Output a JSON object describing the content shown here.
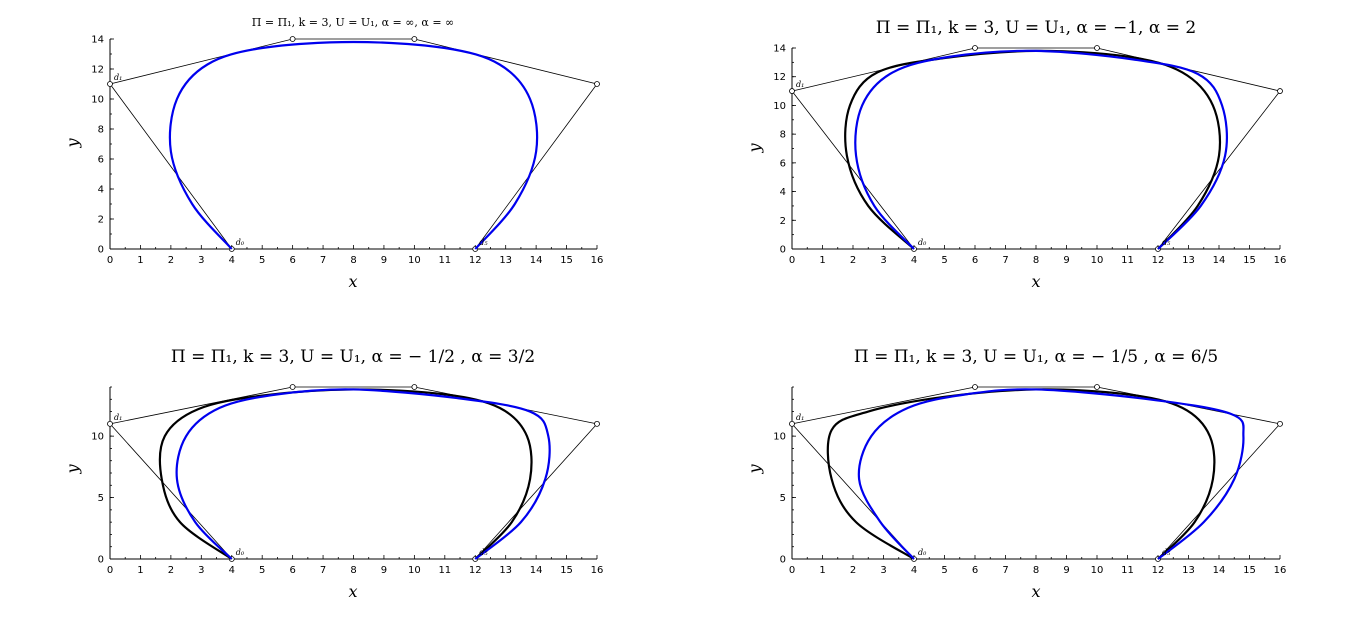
{
  "chart_data": [
    {
      "type": "line",
      "title": "Π = Π₁, k = 3, U = U₁, α = ∞, α = ∞",
      "xlabel": "x",
      "ylabel": "y",
      "xlim": [
        0,
        16
      ],
      "ylim": [
        0,
        14
      ],
      "xticks": [
        "0",
        "1",
        "2",
        "3",
        "4",
        "5",
        "6",
        "7",
        "8",
        "9",
        "10",
        "11",
        "12",
        "13",
        "14",
        "15",
        "16"
      ],
      "yticks": [
        "0",
        "2",
        "4",
        "6",
        "8",
        "10",
        "12",
        "14"
      ],
      "grid": false,
      "control_polygon": {
        "x": [
          4,
          0,
          6,
          10,
          16,
          12
        ],
        "y": [
          0,
          11,
          14,
          14,
          11,
          0
        ]
      },
      "point_labels": [
        {
          "text": "d₁",
          "x": 0,
          "y": 11
        },
        {
          "text": "d₀",
          "x": 4,
          "y": 0
        },
        {
          "text": "d₅",
          "x": 12,
          "y": 0
        }
      ],
      "series": [
        {
          "color": "#0000ee",
          "x": [
            4,
            2.7,
            2.0,
            2.2,
            3.2,
            5.0,
            8.0,
            11.0,
            12.8,
            13.8,
            14.0,
            13.3,
            12
          ],
          "y": [
            0,
            3.0,
            6.5,
            10.0,
            12.3,
            13.4,
            13.8,
            13.4,
            12.3,
            10.0,
            6.5,
            3.0,
            0
          ]
        }
      ]
    },
    {
      "type": "line",
      "title": "Π = Π₁, k = 3, U = U₁, α = −1, α = 2",
      "xlabel": "x",
      "ylabel": "y",
      "xlim": [
        0,
        16
      ],
      "ylim": [
        0,
        14
      ],
      "xticks": [
        "0",
        "1",
        "2",
        "3",
        "4",
        "5",
        "6",
        "7",
        "8",
        "9",
        "10",
        "11",
        "12",
        "13",
        "14",
        "15",
        "16"
      ],
      "yticks": [
        "0",
        "2",
        "4",
        "6",
        "8",
        "10",
        "12",
        "14"
      ],
      "grid": false,
      "control_polygon": {
        "x": [
          4,
          0,
          6,
          10,
          16,
          12
        ],
        "y": [
          0,
          11,
          14,
          14,
          11,
          0
        ]
      },
      "point_labels": [
        {
          "text": "d₁",
          "x": 0,
          "y": 11
        },
        {
          "text": "d₀",
          "x": 4,
          "y": 0
        },
        {
          "text": "d₅",
          "x": 12,
          "y": 0
        }
      ],
      "series": [
        {
          "color": "#000000",
          "x": [
            4,
            2.5,
            1.8,
            1.9,
            2.8,
            5.0,
            8.0,
            11.0,
            12.8,
            13.8,
            14.0,
            13.3,
            12
          ],
          "y": [
            0,
            3.0,
            6.5,
            10.0,
            12.3,
            13.3,
            13.8,
            13.4,
            12.3,
            10.0,
            6.5,
            3.0,
            0
          ]
        },
        {
          "color": "#0000ee",
          "x": [
            4,
            2.7,
            2.1,
            2.3,
            3.3,
            5.2,
            8.0,
            11.2,
            13.3,
            14.1,
            14.2,
            13.4,
            12
          ],
          "y": [
            0,
            3.0,
            6.5,
            10.0,
            12.3,
            13.4,
            13.8,
            13.2,
            12.2,
            10.0,
            6.5,
            3.0,
            0
          ]
        }
      ]
    },
    {
      "type": "line",
      "title": "Π = Π₁, k = 3, U = U₁, α = − 1/2 , α = 3/2",
      "xlabel": "x",
      "ylabel": "y",
      "xlim": [
        0,
        16
      ],
      "ylim": [
        0,
        14
      ],
      "xticks": [
        "0",
        "1",
        "2",
        "3",
        "4",
        "5",
        "6",
        "7",
        "8",
        "9",
        "10",
        "11",
        "12",
        "13",
        "14",
        "15",
        "16"
      ],
      "yticks": [
        "0",
        "5",
        "10"
      ],
      "grid": false,
      "control_polygon": {
        "x": [
          4,
          0,
          6,
          10,
          16,
          12
        ],
        "y": [
          0,
          11,
          14,
          14,
          11,
          0
        ]
      },
      "point_labels": [
        {
          "text": "d₁",
          "x": 0,
          "y": 11
        },
        {
          "text": "d₀",
          "x": 4,
          "y": 0
        },
        {
          "text": "d₅",
          "x": 12,
          "y": 0
        }
      ],
      "series": [
        {
          "color": "#000000",
          "x": [
            4,
            2.3,
            1.7,
            1.8,
            2.9,
            5.0,
            8.0,
            11.0,
            12.8,
            13.7,
            13.8,
            13.2,
            12
          ],
          "y": [
            0,
            3.0,
            6.5,
            10.0,
            12.2,
            13.3,
            13.8,
            13.4,
            12.3,
            10.0,
            6.5,
            3.0,
            0
          ]
        },
        {
          "color": "#0000ee",
          "x": [
            4,
            2.8,
            2.2,
            2.5,
            3.6,
            5.5,
            8.0,
            11.4,
            13.8,
            14.4,
            14.3,
            13.5,
            12
          ],
          "y": [
            0,
            3.0,
            6.5,
            10.0,
            12.3,
            13.4,
            13.8,
            13.1,
            12.0,
            10.0,
            6.5,
            3.0,
            0
          ]
        }
      ]
    },
    {
      "type": "line",
      "title": "Π = Π₁, k = 3, U = U₁, α = − 1/5 , α = 6/5",
      "xlabel": "x",
      "ylabel": "y",
      "xlim": [
        0,
        16
      ],
      "ylim": [
        0,
        14
      ],
      "xticks": [
        "0",
        "1",
        "2",
        "3",
        "4",
        "5",
        "6",
        "7",
        "8",
        "9",
        "10",
        "11",
        "12",
        "13",
        "14",
        "15",
        "16"
      ],
      "yticks": [
        "0",
        "5",
        "10"
      ],
      "grid": false,
      "control_polygon": {
        "x": [
          4,
          0,
          6,
          10,
          16,
          12
        ],
        "y": [
          0,
          11,
          14,
          14,
          11,
          0
        ]
      },
      "point_labels": [
        {
          "text": "d₁",
          "x": 0,
          "y": 11
        },
        {
          "text": "d₀",
          "x": 4,
          "y": 0
        },
        {
          "text": "d₅",
          "x": 12,
          "y": 0
        }
      ],
      "series": [
        {
          "color": "#000000",
          "x": [
            4,
            2.1,
            1.3,
            1.3,
            2.5,
            5.0,
            8.0,
            11.0,
            12.8,
            13.7,
            13.8,
            13.2,
            12
          ],
          "y": [
            0,
            3.0,
            6.5,
            10.5,
            12.0,
            13.2,
            13.8,
            13.4,
            12.3,
            10.0,
            6.5,
            3.0,
            0
          ]
        },
        {
          "color": "#0000ee",
          "x": [
            4,
            2.9,
            2.2,
            2.6,
            3.8,
            5.7,
            8.0,
            11.7,
            14.4,
            14.8,
            14.5,
            13.5,
            12
          ],
          "y": [
            0,
            3.0,
            6.5,
            10.0,
            12.3,
            13.4,
            13.8,
            13.0,
            11.8,
            10.0,
            6.5,
            3.0,
            0
          ]
        }
      ]
    }
  ]
}
